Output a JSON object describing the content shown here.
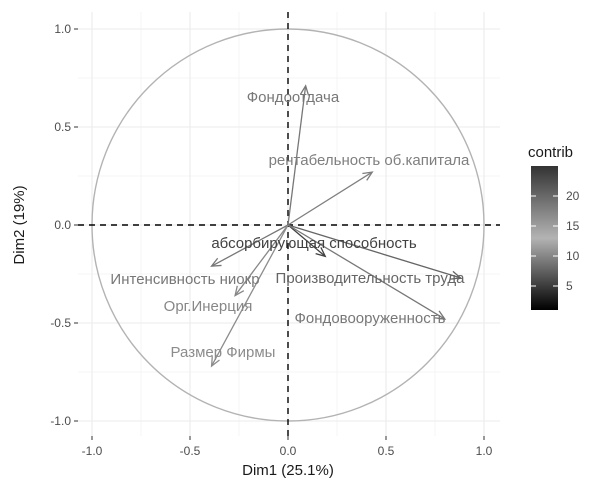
{
  "chart_data": {
    "type": "scatter",
    "subtype": "pca-variable-correlation-circle",
    "title": "",
    "xlabel": "Dim1 (25.1%)",
    "ylabel": "Dim2 (19%)",
    "xlim": [
      -1.0,
      1.0
    ],
    "ylim": [
      -1.0,
      1.0
    ],
    "x_ticks": [
      "-1.0",
      "-0.5",
      "0.0",
      "0.5",
      "1.0"
    ],
    "y_ticks": [
      "-1.0",
      "-0.5",
      "0.0",
      "0.5",
      "1.0"
    ],
    "grid": true,
    "unit_circle": true,
    "reference_lines": "dashed at x=0 and y=0",
    "legend": {
      "title": "contrib",
      "placement": "right",
      "ticks": [
        "5",
        "10",
        "15",
        "20"
      ],
      "range": [
        1,
        25
      ],
      "tick_values": [
        5,
        10,
        15,
        20
      ],
      "colors": [
        "#000000",
        "#ffffff",
        "#333333"
      ]
    },
    "variables": [
      {
        "label": "Фондоотдача",
        "x": 0.09,
        "y": 0.71,
        "contrib": 9
      },
      {
        "label": "рентабельность об.капитала",
        "x": 0.43,
        "y": 0.27,
        "contrib": 10
      },
      {
        "label": "абсорбирующая способность",
        "x": 0.19,
        "y": -0.16,
        "contrib": 24
      },
      {
        "label": "Интенсивность ниокр",
        "x": -0.39,
        "y": -0.21,
        "contrib": 19
      },
      {
        "label": "Производительность труда",
        "x": 0.88,
        "y": -0.27,
        "contrib": 21
      },
      {
        "label": "Орг.Инерция",
        "x": -0.27,
        "y": -0.36,
        "contrib": 16
      },
      {
        "label": "Фондовооруженность",
        "x": 0.8,
        "y": -0.48,
        "contrib": 19
      },
      {
        "label": "Размер Фирмы",
        "x": -0.39,
        "y": -0.72,
        "contrib": 14
      }
    ]
  }
}
